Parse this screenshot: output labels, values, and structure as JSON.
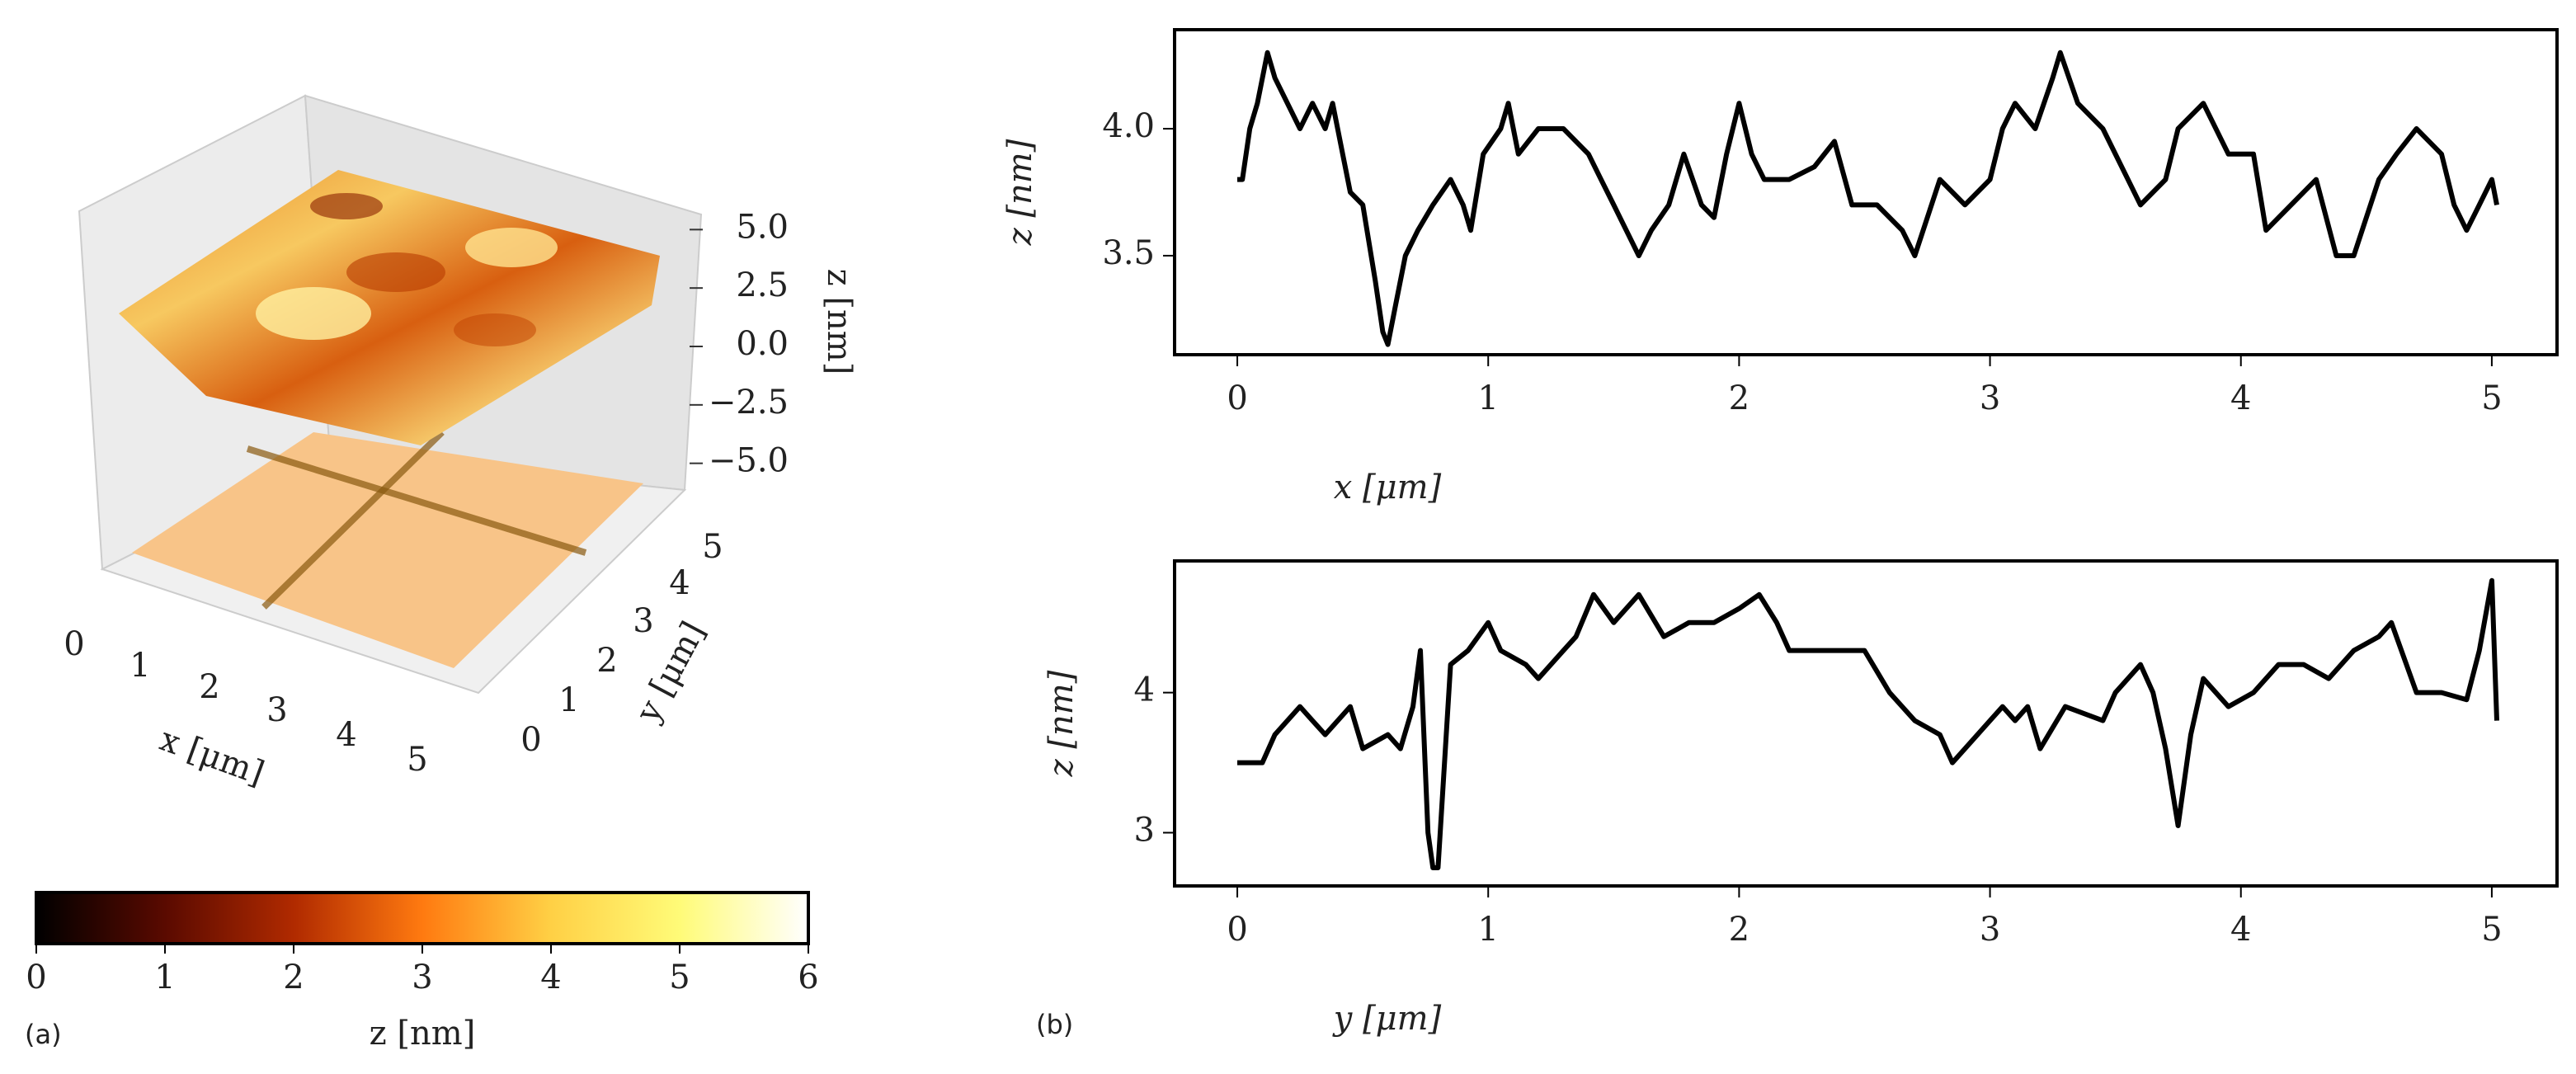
{
  "chart_data": [
    {
      "type": "surface",
      "label": "(a)",
      "xlabel": "x [μm]",
      "ylabel": "y [μm]",
      "zlabel": "z [nm]",
      "xticks": [
        0,
        1,
        2,
        3,
        4,
        5
      ],
      "yticks": [
        0,
        1,
        2,
        3,
        4,
        5
      ],
      "zticks": [
        {
          "value": 5,
          "label": "5.0"
        },
        {
          "value": 2.5,
          "label": "2.5"
        },
        {
          "value": 0,
          "label": "0.0"
        },
        {
          "value": -2.5,
          "label": "−2.5"
        },
        {
          "value": -5,
          "label": "−5.0"
        }
      ],
      "zlim": [
        -6,
        6
      ]
    },
    {
      "type": "colorbar",
      "xlabel": "z [nm]",
      "xlim": [
        0,
        6
      ],
      "xticks": [
        0,
        1,
        2,
        3,
        4,
        5,
        6
      ],
      "colors": [
        "#000000",
        "#5a0a00",
        "#b02a00",
        "#ff7a10",
        "#ffd045",
        "#fffb78",
        "#ffffff"
      ]
    },
    {
      "type": "line",
      "label": "(b)",
      "xlabel": "x [μm]",
      "ylabel": "z [nm]",
      "color": "#000000",
      "xlim": [
        -0.25,
        5.26
      ],
      "ylim": [
        3.11,
        4.39
      ],
      "xticks": [
        0,
        1,
        2,
        3,
        4,
        5
      ],
      "yticks": [
        3.5,
        {
          "value": 4,
          "label": "4.0"
        }
      ],
      "x": [
        0,
        0.02,
        0.05,
        0.08,
        0.12,
        0.15,
        0.2,
        0.25,
        0.3,
        0.35,
        0.38,
        0.42,
        0.45,
        0.5,
        0.55,
        0.58,
        0.6,
        0.63,
        0.67,
        0.72,
        0.78,
        0.85,
        0.9,
        0.93,
        0.98,
        1.05,
        1.08,
        1.12,
        1.2,
        1.3,
        1.4,
        1.45,
        1.5,
        1.55,
        1.6,
        1.65,
        1.72,
        1.78,
        1.85,
        1.9,
        1.95,
        2.0,
        2.05,
        2.1,
        2.2,
        2.3,
        2.38,
        2.45,
        2.55,
        2.65,
        2.7,
        2.8,
        2.9,
        3.0,
        3.05,
        3.1,
        3.18,
        3.25,
        3.28,
        3.35,
        3.45,
        3.55,
        3.6,
        3.7,
        3.75,
        3.85,
        3.95,
        4.05,
        4.1,
        4.2,
        4.3,
        4.38,
        4.45,
        4.55,
        4.62,
        4.7,
        4.8,
        4.85,
        4.9,
        4.95,
        5.0,
        5.02
      ],
      "values": [
        3.8,
        3.8,
        4.0,
        4.1,
        4.3,
        4.2,
        4.1,
        4.0,
        4.1,
        4.0,
        4.1,
        3.9,
        3.75,
        3.7,
        3.4,
        3.2,
        3.15,
        3.3,
        3.5,
        3.6,
        3.7,
        3.8,
        3.7,
        3.6,
        3.9,
        4.0,
        4.1,
        3.9,
        4.0,
        4.0,
        3.9,
        3.8,
        3.7,
        3.6,
        3.5,
        3.6,
        3.7,
        3.9,
        3.7,
        3.65,
        3.9,
        4.1,
        3.9,
        3.8,
        3.8,
        3.85,
        3.95,
        3.7,
        3.7,
        3.6,
        3.5,
        3.8,
        3.7,
        3.8,
        4.0,
        4.1,
        4.0,
        4.2,
        4.3,
        4.1,
        4.0,
        3.8,
        3.7,
        3.8,
        4.0,
        4.1,
        3.9,
        3.9,
        3.6,
        3.7,
        3.8,
        3.5,
        3.5,
        3.8,
        3.9,
        4.0,
        3.9,
        3.7,
        3.6,
        3.7,
        3.8,
        3.7
      ]
    },
    {
      "type": "line",
      "xlabel": "y [μm]",
      "ylabel": "z [nm]",
      "color": "#000000",
      "xlim": [
        -0.25,
        5.26
      ],
      "ylim": [
        2.62,
        4.94
      ],
      "xticks": [
        0,
        1,
        2,
        3,
        4,
        5
      ],
      "yticks": [
        3,
        4
      ],
      "x": [
        0,
        0.1,
        0.15,
        0.25,
        0.3,
        0.35,
        0.45,
        0.5,
        0.6,
        0.65,
        0.7,
        0.73,
        0.76,
        0.78,
        0.8,
        0.85,
        0.92,
        1.0,
        1.05,
        1.15,
        1.2,
        1.3,
        1.35,
        1.42,
        1.5,
        1.6,
        1.7,
        1.8,
        1.9,
        2.0,
        2.08,
        2.15,
        2.2,
        2.5,
        2.6,
        2.7,
        2.8,
        2.85,
        2.95,
        3.05,
        3.1,
        3.15,
        3.2,
        3.3,
        3.45,
        3.5,
        3.6,
        3.65,
        3.7,
        3.75,
        3.8,
        3.85,
        3.95,
        4.05,
        4.15,
        4.25,
        4.35,
        4.45,
        4.55,
        4.6,
        4.7,
        4.8,
        4.9,
        4.95,
        5.0,
        5.02
      ],
      "values": [
        3.5,
        3.5,
        3.7,
        3.9,
        3.8,
        3.7,
        3.9,
        3.6,
        3.7,
        3.6,
        3.9,
        4.3,
        3.0,
        2.75,
        2.75,
        4.2,
        4.3,
        4.5,
        4.3,
        4.2,
        4.1,
        4.3,
        4.4,
        4.7,
        4.5,
        4.7,
        4.4,
        4.5,
        4.5,
        4.6,
        4.7,
        4.5,
        4.3,
        4.3,
        4.0,
        3.8,
        3.7,
        3.5,
        3.7,
        3.9,
        3.8,
        3.9,
        3.6,
        3.9,
        3.8,
        4.0,
        4.2,
        4.0,
        3.6,
        3.05,
        3.7,
        4.1,
        3.9,
        4.0,
        4.2,
        4.2,
        4.1,
        4.3,
        4.4,
        4.5,
        4.0,
        4.0,
        3.95,
        4.3,
        4.8,
        3.8
      ]
    }
  ]
}
